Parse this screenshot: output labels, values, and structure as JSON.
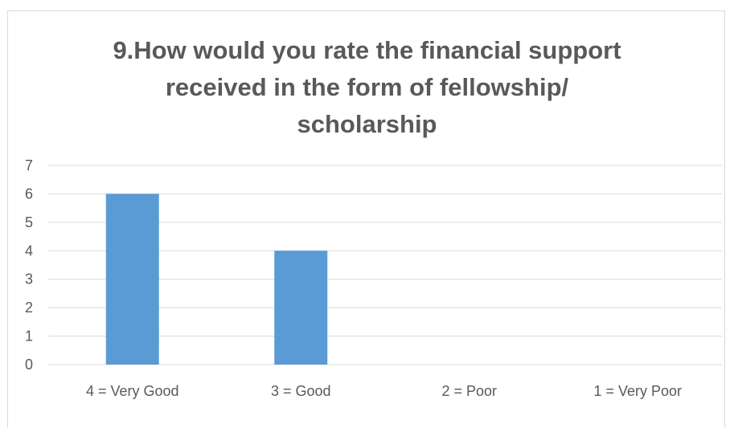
{
  "chart_data": {
    "type": "bar",
    "title_lines": [
      "9.How would you rate the financial support",
      "received in the form of fellowship/",
      "scholarship"
    ],
    "categories": [
      "4 = Very Good",
      "3 = Good",
      "2 = Poor",
      "1 = Very Poor"
    ],
    "values": [
      6,
      4,
      0,
      0
    ],
    "ylim": [
      0,
      7
    ],
    "yticks": [
      0,
      1,
      2,
      3,
      4,
      5,
      6,
      7
    ],
    "grid": true,
    "legend": "none",
    "bar_color": "#5b9bd5",
    "gridline_color": "#d9d9d9"
  }
}
